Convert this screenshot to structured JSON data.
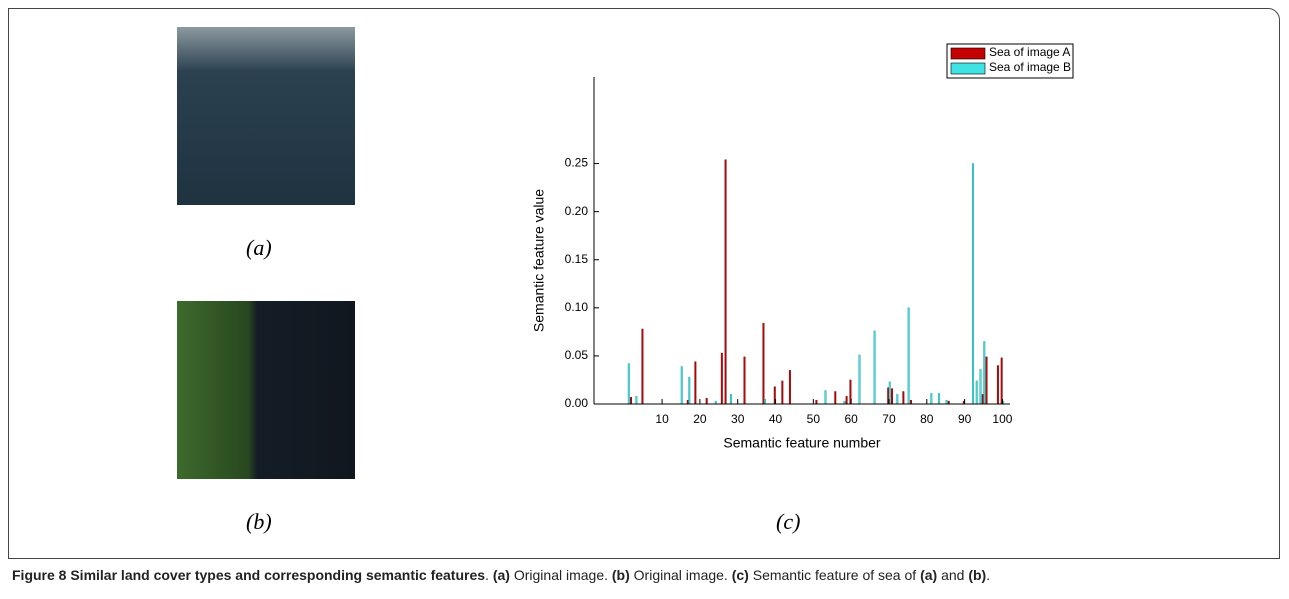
{
  "figure": {
    "panel_labels": [
      "(a)",
      "(b)",
      "(c)"
    ],
    "caption": [
      {
        "text": "Figure 8 Similar land cover types and corresponding semantic features",
        "bold": true
      },
      {
        "text": ". ",
        "bold": false
      },
      {
        "text": "(a)",
        "bold": true
      },
      {
        "text": " Original image. ",
        "bold": false
      },
      {
        "text": "(b)",
        "bold": true
      },
      {
        "text": " Original image. ",
        "bold": false
      },
      {
        "text": "(c)",
        "bold": true
      },
      {
        "text": " Semantic feature of sea of ",
        "bold": false
      },
      {
        "text": "(a)",
        "bold": true
      },
      {
        "text": " and ",
        "bold": false
      },
      {
        "text": "(b)",
        "bold": true
      },
      {
        "text": ".",
        "bold": false
      }
    ]
  },
  "chart_data": {
    "type": "bar",
    "xlabel": "Semantic feature number",
    "ylabel": "Semantic feature value",
    "legend": "upper right",
    "x": [
      1,
      2,
      3,
      4,
      5,
      6,
      7,
      8,
      9,
      10,
      11,
      12,
      13,
      14,
      15,
      16,
      17,
      18,
      19,
      20,
      21,
      22,
      23,
      24,
      25,
      26,
      27,
      28,
      29,
      30,
      31,
      32,
      33,
      34,
      35,
      36,
      37,
      38,
      39,
      40,
      41,
      42,
      43,
      44,
      45,
      46,
      47,
      48,
      49,
      50,
      51,
      52,
      53,
      54,
      55,
      56,
      57,
      58,
      59,
      60,
      61,
      62,
      63,
      64,
      65,
      66,
      67,
      68,
      69,
      70,
      71,
      72,
      73,
      74,
      75,
      76,
      77,
      78,
      79,
      80,
      81,
      82,
      83,
      84,
      85,
      86,
      87,
      88,
      89,
      90,
      91,
      92,
      93,
      94,
      95,
      96,
      97,
      98,
      99,
      100
    ],
    "series": [
      {
        "name": "Sea of image A",
        "color": "#c40000",
        "values": [
          0,
          0.007,
          0,
          0,
          0.078,
          0,
          0,
          0,
          0,
          0,
          0,
          0,
          0,
          0,
          0,
          0,
          0.004,
          0,
          0.044,
          0,
          0,
          0.006,
          0,
          0,
          0,
          0.053,
          0.254,
          0,
          0,
          0,
          0,
          0.049,
          0,
          0,
          0,
          0,
          0.084,
          0,
          0,
          0.018,
          0,
          0.024,
          0,
          0.035,
          0,
          0,
          0,
          0,
          0,
          0,
          0.004,
          0,
          0,
          0,
          0,
          0.013,
          0,
          0,
          0.008,
          0.025,
          0,
          0,
          0,
          0,
          0,
          0,
          0,
          0,
          0,
          0.017,
          0.016,
          0,
          0,
          0.013,
          0,
          0.004,
          0,
          0,
          0,
          0,
          0,
          0,
          0,
          0,
          0,
          0.003,
          0,
          0,
          0,
          0.003,
          0,
          0,
          0,
          0,
          0.01,
          0.049,
          0,
          0,
          0.04,
          0.048
        ]
      },
      {
        "name": "Sea of image B",
        "color": "#3fe3e3",
        "values": [
          0.042,
          0,
          0.008,
          0,
          0,
          0,
          0,
          0,
          0,
          0,
          0,
          0,
          0,
          0,
          0.039,
          0,
          0.028,
          0,
          0,
          0,
          0,
          0,
          0,
          0.003,
          0,
          0,
          0,
          0.01,
          0,
          0,
          0,
          0,
          0,
          0,
          0,
          0,
          0.005,
          0,
          0,
          0,
          0,
          0,
          0,
          0,
          0,
          0,
          0,
          0,
          0,
          0,
          0,
          0,
          0.014,
          0,
          0,
          0,
          0,
          0.003,
          0,
          0,
          0,
          0.051,
          0,
          0,
          0,
          0.076,
          0,
          0,
          0,
          0.023,
          0,
          0.01,
          0,
          0,
          0.1,
          0,
          0,
          0,
          0,
          0,
          0.011,
          0,
          0.011,
          0,
          0.004,
          0,
          0,
          0,
          0,
          0,
          0,
          0.25,
          0.024,
          0.036,
          0.065,
          0,
          0,
          0,
          0,
          0.003
        ]
      }
    ],
    "xlim": [
      -8,
      102
    ],
    "ylim": [
      0,
      0.34
    ],
    "xticks": [
      10,
      20,
      30,
      40,
      50,
      60,
      70,
      80,
      90,
      100
    ],
    "yticks": [
      {
        "value": 0,
        "label": "0.00"
      },
      {
        "value": 0.05,
        "label": "0.05"
      },
      {
        "value": 0.1,
        "label": "0.10"
      },
      {
        "value": 0.15,
        "label": "0.15"
      },
      {
        "value": 0.2,
        "label": "0.20"
      },
      {
        "value": 0.25,
        "label": "0.25"
      }
    ]
  }
}
